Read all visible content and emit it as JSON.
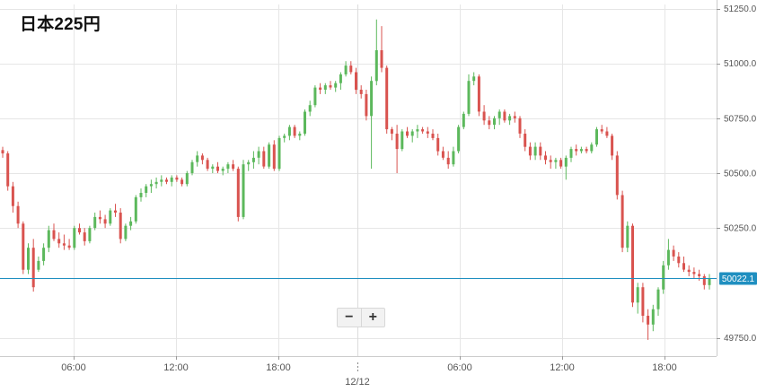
{
  "chart_title": "日本225円",
  "zoom": {
    "out_label": "−",
    "in_label": "+"
  },
  "colors": {
    "up": "#5cb85c",
    "down": "#d9534f",
    "current_line": "#1f8fc0",
    "grid": "#e6e6e6",
    "axis_text": "#555555"
  },
  "chart_data": {
    "type": "candlestick",
    "title": "日本225円",
    "yaxis": {
      "position": "right",
      "ylim": [
        49650,
        51300
      ],
      "ticks": [
        51250,
        51000,
        50750,
        50500,
        50250,
        49750
      ],
      "tick_labels": [
        "51250.0",
        "51000.0",
        "50750.0",
        "50500.0",
        "50250.0",
        "49750.0"
      ]
    },
    "xaxis": {
      "tick_labels": [
        "06:00",
        "12:00",
        "18:00",
        "06:00",
        "12:00",
        "18:00"
      ],
      "date_label": "12/12"
    },
    "current_price": {
      "value": 50022.1,
      "label": "50022.1"
    },
    "grid": true,
    "candles": [
      [
        50605,
        50620,
        50570,
        50590
      ],
      [
        50590,
        50600,
        50420,
        50440
      ],
      [
        50440,
        50460,
        50320,
        50350
      ],
      [
        50350,
        50370,
        50250,
        50270
      ],
      [
        50270,
        50280,
        50040,
        50060
      ],
      [
        50060,
        50180,
        50040,
        50160
      ],
      [
        50160,
        50200,
        49960,
        49980
      ],
      [
        50060,
        50120,
        50050,
        50100
      ],
      [
        50100,
        50180,
        50080,
        50160
      ],
      [
        50160,
        50260,
        50140,
        50240
      ],
      [
        50240,
        50270,
        50190,
        50200
      ],
      [
        50200,
        50230,
        50160,
        50180
      ],
      [
        50180,
        50220,
        50150,
        50170
      ],
      [
        50170,
        50200,
        50150,
        50160
      ],
      [
        50160,
        50260,
        50150,
        50250
      ],
      [
        50250,
        50270,
        50220,
        50230
      ],
      [
        50230,
        50250,
        50170,
        50190
      ],
      [
        50190,
        50260,
        50180,
        50250
      ],
      [
        50250,
        50320,
        50240,
        50300
      ],
      [
        50300,
        50330,
        50270,
        50290
      ],
      [
        50290,
        50310,
        50250,
        50270
      ],
      [
        50270,
        50340,
        50260,
        50330
      ],
      [
        50330,
        50360,
        50300,
        50320
      ],
      [
        50320,
        50340,
        50180,
        50200
      ],
      [
        50200,
        50270,
        50190,
        50260
      ],
      [
        50260,
        50300,
        50240,
        50280
      ],
      [
        50280,
        50400,
        50270,
        50390
      ],
      [
        50390,
        50430,
        50370,
        50410
      ],
      [
        50410,
        50450,
        50390,
        50440
      ],
      [
        50440,
        50470,
        50410,
        50450
      ],
      [
        50450,
        50480,
        50430,
        50460
      ],
      [
        50460,
        50490,
        50440,
        50470
      ],
      [
        50470,
        50480,
        50450,
        50460
      ],
      [
        50460,
        50490,
        50440,
        50480
      ],
      [
        50480,
        50490,
        50460,
        50470
      ],
      [
        50470,
        50480,
        50440,
        50450
      ],
      [
        50450,
        50510,
        50440,
        50500
      ],
      [
        50500,
        50560,
        50490,
        50550
      ],
      [
        50550,
        50600,
        50530,
        50580
      ],
      [
        50580,
        50590,
        50540,
        50560
      ],
      [
        50560,
        50570,
        50510,
        50520
      ],
      [
        50520,
        50540,
        50500,
        50530
      ],
      [
        50530,
        50550,
        50500,
        50510
      ],
      [
        50510,
        50530,
        50490,
        50520
      ],
      [
        50520,
        50550,
        50500,
        50540
      ],
      [
        50540,
        50560,
        50510,
        50520
      ],
      [
        50520,
        50530,
        50280,
        50300
      ],
      [
        50300,
        50560,
        50290,
        50540
      ],
      [
        50540,
        50560,
        50510,
        50550
      ],
      [
        50550,
        50600,
        50520,
        50570
      ],
      [
        50570,
        50620,
        50540,
        50600
      ],
      [
        50600,
        50620,
        50520,
        50530
      ],
      [
        50530,
        50640,
        50520,
        50630
      ],
      [
        50630,
        50650,
        50510,
        50520
      ],
      [
        50520,
        50670,
        50510,
        50660
      ],
      [
        50660,
        50680,
        50640,
        50670
      ],
      [
        50670,
        50720,
        50650,
        50710
      ],
      [
        50710,
        50720,
        50660,
        50670
      ],
      [
        50670,
        50690,
        50650,
        50680
      ],
      [
        50680,
        50790,
        50670,
        50780
      ],
      [
        50780,
        50830,
        50760,
        50810
      ],
      [
        50810,
        50900,
        50800,
        50890
      ],
      [
        50890,
        50910,
        50860,
        50880
      ],
      [
        50880,
        50910,
        50860,
        50900
      ],
      [
        50900,
        50920,
        50880,
        50890
      ],
      [
        50890,
        50920,
        50870,
        50910
      ],
      [
        50910,
        50960,
        50880,
        50950
      ],
      [
        50950,
        51010,
        50940,
        50990
      ],
      [
        50990,
        51010,
        50950,
        50960
      ],
      [
        50960,
        50980,
        50860,
        50880
      ],
      [
        50880,
        50900,
        50840,
        50860
      ],
      [
        50860,
        50880,
        50740,
        50760
      ],
      [
        50760,
        50940,
        50520,
        50920
      ],
      [
        50920,
        51200,
        50900,
        51060
      ],
      [
        51060,
        51170,
        50960,
        50980
      ],
      [
        50980,
        50990,
        50680,
        50700
      ],
      [
        50700,
        50710,
        50650,
        50680
      ],
      [
        50680,
        50720,
        50500,
        50610
      ],
      [
        50610,
        50700,
        50600,
        50690
      ],
      [
        50690,
        50710,
        50660,
        50670
      ],
      [
        50670,
        50700,
        50640,
        50690
      ],
      [
        50690,
        50720,
        50660,
        50700
      ],
      [
        50700,
        50710,
        50680,
        50690
      ],
      [
        50690,
        50710,
        50660,
        50680
      ],
      [
        50680,
        50700,
        50650,
        50660
      ],
      [
        50660,
        50680,
        50580,
        50600
      ],
      [
        50600,
        50620,
        50560,
        50570
      ],
      [
        50570,
        50600,
        50520,
        50540
      ],
      [
        50540,
        50620,
        50530,
        50600
      ],
      [
        50600,
        50720,
        50590,
        50710
      ],
      [
        50710,
        50780,
        50700,
        50770
      ],
      [
        50770,
        50950,
        50760,
        50920
      ],
      [
        50920,
        50960,
        50900,
        50940
      ],
      [
        50940,
        50950,
        50760,
        50780
      ],
      [
        50780,
        50810,
        50720,
        50740
      ],
      [
        50740,
        50760,
        50700,
        50720
      ],
      [
        50720,
        50760,
        50700,
        50750
      ],
      [
        50750,
        50790,
        50720,
        50780
      ],
      [
        50780,
        50790,
        50730,
        50740
      ],
      [
        50740,
        50770,
        50720,
        50760
      ],
      [
        50760,
        50780,
        50730,
        50750
      ],
      [
        50750,
        50760,
        50660,
        50680
      ],
      [
        50680,
        50700,
        50600,
        50620
      ],
      [
        50620,
        50640,
        50560,
        50580
      ],
      [
        50580,
        50640,
        50560,
        50620
      ],
      [
        50620,
        50640,
        50560,
        50580
      ],
      [
        50580,
        50600,
        50540,
        50560
      ],
      [
        50560,
        50580,
        50520,
        50550
      ],
      [
        50550,
        50570,
        50520,
        50560
      ],
      [
        50560,
        50570,
        50520,
        50530
      ],
      [
        50530,
        50580,
        50470,
        50570
      ],
      [
        50570,
        50620,
        50550,
        50610
      ],
      [
        50610,
        50630,
        50580,
        50600
      ],
      [
        50600,
        50620,
        50590,
        50610
      ],
      [
        50610,
        50620,
        50590,
        50600
      ],
      [
        50600,
        50640,
        50590,
        50630
      ],
      [
        50630,
        50710,
        50620,
        50700
      ],
      [
        50700,
        50720,
        50680,
        50690
      ],
      [
        50690,
        50710,
        50660,
        50670
      ],
      [
        50670,
        50680,
        50560,
        50580
      ],
      [
        50580,
        50600,
        50380,
        50400
      ],
      [
        50400,
        50420,
        50140,
        50160
      ],
      [
        50160,
        50280,
        50140,
        50260
      ],
      [
        50260,
        50270,
        49890,
        49910
      ],
      [
        49910,
        50000,
        49860,
        49980
      ],
      [
        49980,
        50000,
        49820,
        49850
      ],
      [
        49850,
        49880,
        49740,
        49810
      ],
      [
        49810,
        49900,
        49780,
        49880
      ],
      [
        49880,
        49980,
        49850,
        49970
      ],
      [
        49970,
        50100,
        49950,
        50080
      ],
      [
        50080,
        50200,
        50060,
        50150
      ],
      [
        50150,
        50170,
        50100,
        50120
      ],
      [
        50120,
        50140,
        50070,
        50090
      ],
      [
        50090,
        50120,
        50050,
        50060
      ],
      [
        50060,
        50080,
        50030,
        50050
      ],
      [
        50050,
        50070,
        50020,
        50040
      ],
      [
        50040,
        50060,
        50010,
        50030
      ],
      [
        50030,
        50040,
        49970,
        49990
      ],
      [
        49990,
        50040,
        49970,
        50022
      ]
    ]
  }
}
